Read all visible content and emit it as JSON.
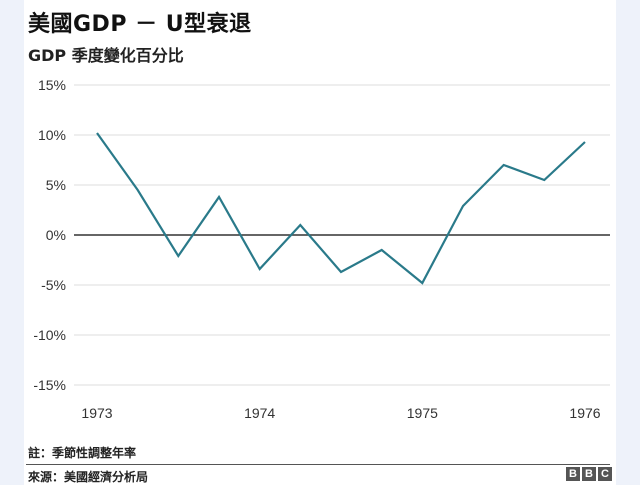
{
  "header": {
    "title": "美國GDP － U型衰退",
    "subtitle": "GDP  季度變化百分比"
  },
  "footer": {
    "note": "註：季節性調整年率",
    "source": "來源：美國經濟分析局",
    "logo_letters": [
      "B",
      "B",
      "C"
    ]
  },
  "colors": {
    "line": "#2a7a8a",
    "zero_line": "#333333",
    "grid": "#dddddd",
    "background": "#eef2fa"
  },
  "chart_data": {
    "type": "line",
    "title": "美國GDP － U型衰退",
    "subtitle": "GDP 季度變化百分比",
    "xlabel": "",
    "ylabel": "",
    "ylim": [
      -15,
      15
    ],
    "yticks": [
      "15%",
      "10%",
      "5%",
      "0%",
      "-5%",
      "-10%",
      "-15%"
    ],
    "ytick_values": [
      15,
      10,
      5,
      0,
      -5,
      -10,
      -15
    ],
    "xticks": [
      "1973",
      "1974",
      "1975",
      "1976"
    ],
    "grid": true,
    "legend": "none",
    "x": [
      "1973Q1",
      "1973Q2",
      "1973Q3",
      "1973Q4",
      "1974Q1",
      "1974Q2",
      "1974Q3",
      "1974Q4",
      "1975Q1",
      "1975Q2",
      "1975Q3",
      "1975Q4",
      "1976Q1"
    ],
    "series": [
      {
        "name": "GDP 季度變化百分比",
        "values": [
          10.2,
          4.5,
          -2.1,
          3.8,
          -3.4,
          1.0,
          -3.7,
          -1.5,
          -4.8,
          2.9,
          7.0,
          5.5,
          9.3
        ]
      }
    ]
  }
}
